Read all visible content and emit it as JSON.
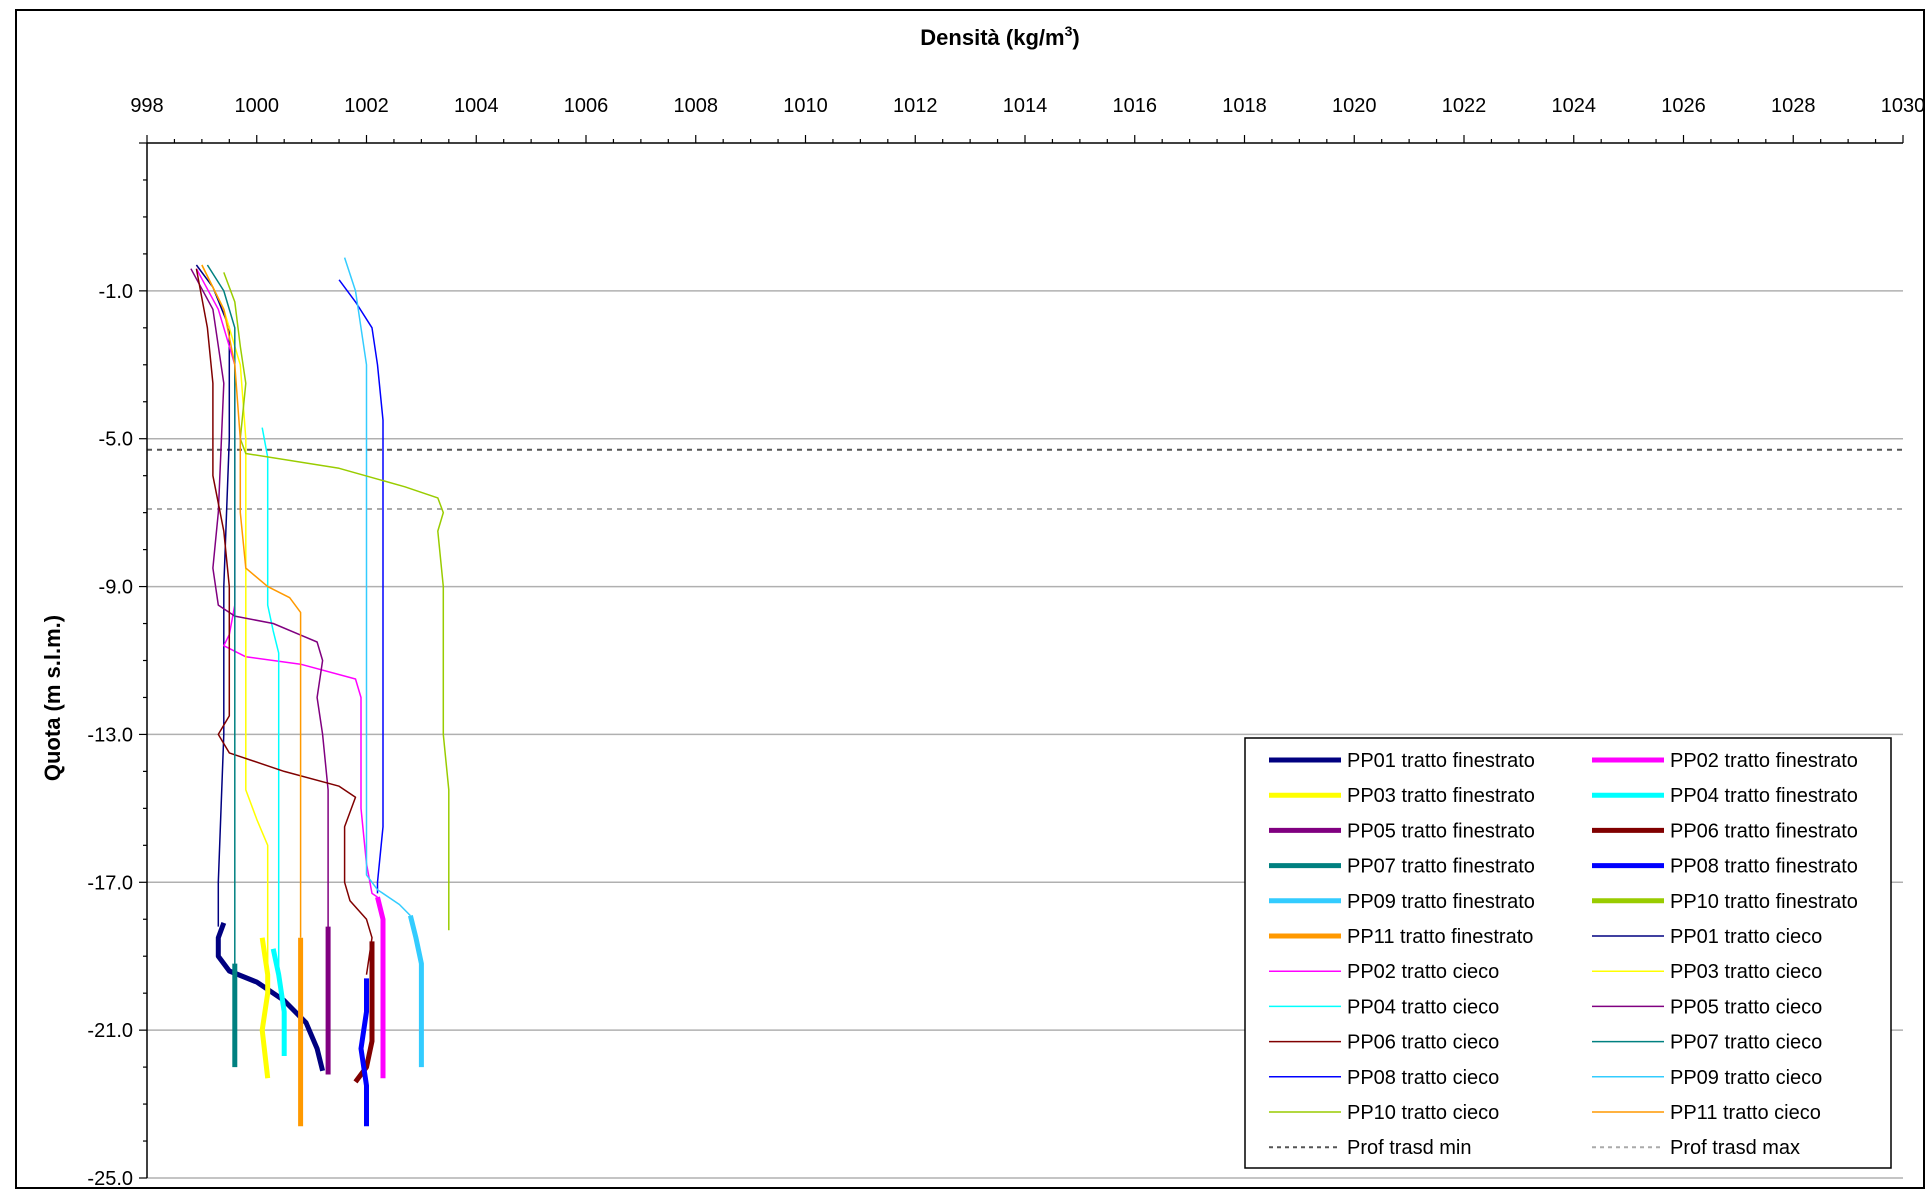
{
  "chart_data": {
    "type": "line",
    "title": "",
    "xlabel": "Densità (kg/m3)",
    "xlabel_main": "Densità (kg/m",
    "xlabel_sup": "3",
    "xlabel_end": ")",
    "ylabel": "Quota (m s.l.m.)",
    "xlim": [
      998,
      1030
    ],
    "ylim": [
      -25.0,
      3.0
    ],
    "x_ticks": [
      "998",
      "1000",
      "1002",
      "1004",
      "1006",
      "1008",
      "1010",
      "1012",
      "1014",
      "1016",
      "1018",
      "1020",
      "1022",
      "1024",
      "1026",
      "1028",
      "1030"
    ],
    "y_ticks": [
      "-1.0",
      "-5.0",
      "-9.0",
      "-13.0",
      "-17.0",
      "-21.0",
      "-25.0"
    ],
    "x_axis_position": "top",
    "grid": "horizontal",
    "legend_position": "bottom-right",
    "reference_lines": [
      {
        "name": "Prof trasd min",
        "y": -5.3,
        "color": "#555555",
        "dash": "5,5"
      },
      {
        "name": "Prof trasd max",
        "y": -6.9,
        "color": "#aaaaaa",
        "dash": "5,5"
      }
    ],
    "series": [
      {
        "name": "PP01 tratto cieco",
        "color": "#000080",
        "width": 1.5,
        "points": [
          [
            998.9,
            -0.3
          ],
          [
            999.2,
            -0.9
          ],
          [
            999.5,
            -2.0
          ],
          [
            999.5,
            -5.0
          ],
          [
            999.4,
            -9.0
          ],
          [
            999.4,
            -13.0
          ],
          [
            999.3,
            -17.0
          ],
          [
            999.3,
            -18.2
          ]
        ]
      },
      {
        "name": "PP02 tratto cieco",
        "color": "#ff00ff",
        "width": 1.5,
        "points": [
          [
            998.9,
            -0.4
          ],
          [
            999.3,
            -1.5
          ],
          [
            999.6,
            -3.0
          ],
          [
            999.6,
            -6.0
          ],
          [
            999.6,
            -9.5
          ],
          [
            999.5,
            -10.3
          ],
          [
            999.4,
            -10.6
          ],
          [
            999.8,
            -10.9
          ],
          [
            1000.8,
            -11.1
          ],
          [
            1001.8,
            -11.5
          ],
          [
            1001.9,
            -12.0
          ],
          [
            1001.9,
            -13.0
          ],
          [
            1001.9,
            -15.0
          ],
          [
            1002.0,
            -16.5
          ],
          [
            1002.1,
            -17.3
          ],
          [
            1002.2,
            -17.4
          ]
        ]
      },
      {
        "name": "PP03 tratto cieco",
        "color": "#ffff00",
        "width": 1.5,
        "points": [
          [
            999.0,
            -0.3
          ],
          [
            999.4,
            -1.5
          ],
          [
            999.7,
            -3.0
          ],
          [
            999.8,
            -5.0
          ],
          [
            999.8,
            -9.0
          ],
          [
            999.8,
            -13.0
          ],
          [
            999.8,
            -14.5
          ],
          [
            1000.0,
            -15.3
          ],
          [
            1000.2,
            -16.0
          ],
          [
            1000.2,
            -17.0
          ],
          [
            1000.2,
            -18.5
          ],
          [
            1000.2,
            -19.5
          ]
        ]
      },
      {
        "name": "PP04 tratto cieco",
        "color": "#00ffff",
        "width": 1.5,
        "points": [
          [
            1000.1,
            -4.7
          ],
          [
            1000.2,
            -5.5
          ],
          [
            1000.2,
            -7.0
          ],
          [
            1000.2,
            -9.5
          ],
          [
            1000.3,
            -10.2
          ],
          [
            1000.4,
            -10.8
          ],
          [
            1000.4,
            -13.0
          ],
          [
            1000.4,
            -17.0
          ],
          [
            1000.4,
            -19.0
          ],
          [
            1000.4,
            -19.7
          ]
        ]
      },
      {
        "name": "PP05 tratto cieco",
        "color": "#800080",
        "width": 1.5,
        "points": [
          [
            998.8,
            -0.4
          ],
          [
            999.2,
            -1.5
          ],
          [
            999.4,
            -3.5
          ],
          [
            999.3,
            -7.0
          ],
          [
            999.2,
            -8.5
          ],
          [
            999.3,
            -9.5
          ],
          [
            999.6,
            -9.8
          ],
          [
            1000.3,
            -10.0
          ],
          [
            1001.1,
            -10.5
          ],
          [
            1001.2,
            -11.0
          ],
          [
            1001.1,
            -12.0
          ],
          [
            1001.2,
            -13.0
          ],
          [
            1001.3,
            -14.5
          ],
          [
            1001.3,
            -16.0
          ],
          [
            1001.3,
            -17.5
          ],
          [
            1001.3,
            -19.0
          ]
        ]
      },
      {
        "name": "PP06 tratto cieco",
        "color": "#800000",
        "width": 1.5,
        "points": [
          [
            998.9,
            -0.4
          ],
          [
            999.1,
            -2.0
          ],
          [
            999.2,
            -3.5
          ],
          [
            999.2,
            -6.0
          ],
          [
            999.4,
            -7.5
          ],
          [
            999.5,
            -9.0
          ],
          [
            999.5,
            -11.0
          ],
          [
            999.5,
            -12.5
          ],
          [
            999.3,
            -13.0
          ],
          [
            999.5,
            -13.5
          ],
          [
            1000.5,
            -14.0
          ],
          [
            1001.5,
            -14.4
          ],
          [
            1001.8,
            -14.7
          ],
          [
            1001.6,
            -15.5
          ],
          [
            1001.6,
            -17.0
          ],
          [
            1001.7,
            -17.5
          ],
          [
            1002.0,
            -18.0
          ],
          [
            1002.1,
            -18.5
          ],
          [
            1002.0,
            -19.5
          ]
        ]
      },
      {
        "name": "PP07 tratto cieco",
        "color": "#008080",
        "width": 1.5,
        "points": [
          [
            999.1,
            -0.3
          ],
          [
            999.4,
            -1.0
          ],
          [
            999.6,
            -2.0
          ],
          [
            999.6,
            -5.0
          ],
          [
            999.6,
            -9.0
          ],
          [
            999.6,
            -13.0
          ],
          [
            999.6,
            -17.0
          ],
          [
            999.6,
            -19.0
          ],
          [
            999.6,
            -20.0
          ]
        ]
      },
      {
        "name": "PP08 tratto cieco",
        "color": "#0000ff",
        "width": 1.5,
        "points": [
          [
            1001.5,
            -0.7
          ],
          [
            1001.8,
            -1.3
          ],
          [
            1002.1,
            -2.0
          ],
          [
            1002.2,
            -3.0
          ],
          [
            1002.3,
            -4.5
          ],
          [
            1002.3,
            -7.0
          ],
          [
            1002.3,
            -9.5
          ],
          [
            1002.3,
            -12.0
          ],
          [
            1002.3,
            -14.5
          ],
          [
            1002.3,
            -15.5
          ],
          [
            1002.2,
            -17.0
          ],
          [
            1002.2,
            -17.3
          ]
        ]
      },
      {
        "name": "PP09 tratto cieco",
        "color": "#33ccff",
        "width": 1.5,
        "points": [
          [
            1001.6,
            -0.1
          ],
          [
            1001.8,
            -1.0
          ],
          [
            1001.9,
            -2.0
          ],
          [
            1002.0,
            -3.0
          ],
          [
            1002.0,
            -5.0
          ],
          [
            1002.0,
            -9.0
          ],
          [
            1002.0,
            -13.0
          ],
          [
            1002.0,
            -15.5
          ],
          [
            1002.0,
            -16.8
          ],
          [
            1002.2,
            -17.2
          ],
          [
            1002.6,
            -17.6
          ],
          [
            1002.8,
            -17.9
          ]
        ]
      },
      {
        "name": "PP10 tratto cieco",
        "color": "#99cc00",
        "width": 1.5,
        "points": [
          [
            999.4,
            -0.5
          ],
          [
            999.6,
            -1.3
          ],
          [
            999.7,
            -2.5
          ],
          [
            999.8,
            -3.5
          ],
          [
            999.7,
            -5.0
          ],
          [
            999.8,
            -5.4
          ],
          [
            1001.5,
            -5.8
          ],
          [
            1002.7,
            -6.3
          ],
          [
            1003.3,
            -6.6
          ],
          [
            1003.4,
            -7.0
          ],
          [
            1003.3,
            -7.5
          ],
          [
            1003.4,
            -9.0
          ],
          [
            1003.4,
            -11.0
          ],
          [
            1003.4,
            -13.0
          ],
          [
            1003.5,
            -14.5
          ],
          [
            1003.5,
            -16.0
          ],
          [
            1003.5,
            -18.3
          ]
        ]
      },
      {
        "name": "PP11 tratto cieco",
        "color": "#ff9900",
        "width": 1.5,
        "points": [
          [
            999.0,
            -0.3
          ],
          [
            999.4,
            -1.5
          ],
          [
            999.6,
            -3.0
          ],
          [
            999.7,
            -5.0
          ],
          [
            999.7,
            -7.0
          ],
          [
            999.8,
            -8.5
          ],
          [
            1000.2,
            -9.0
          ],
          [
            1000.6,
            -9.3
          ],
          [
            1000.8,
            -9.7
          ],
          [
            1000.8,
            -11.0
          ],
          [
            1000.8,
            -13.0
          ],
          [
            1000.8,
            -15.0
          ],
          [
            1000.8,
            -17.0
          ],
          [
            1000.8,
            -18.5
          ]
        ]
      },
      {
        "name": "PP01 tratto finestrato",
        "color": "#000080",
        "width": 5,
        "points": [
          [
            999.4,
            -18.1
          ],
          [
            999.3,
            -18.5
          ],
          [
            999.3,
            -19.0
          ],
          [
            999.5,
            -19.4
          ],
          [
            1000.0,
            -19.7
          ],
          [
            1000.5,
            -20.2
          ],
          [
            1000.9,
            -20.8
          ],
          [
            1001.1,
            -21.5
          ],
          [
            1001.2,
            -22.1
          ]
        ]
      },
      {
        "name": "PP02 tratto finestrato",
        "color": "#ff00ff",
        "width": 5,
        "points": [
          [
            1002.2,
            -17.4
          ],
          [
            1002.3,
            -18.0
          ],
          [
            1002.3,
            -19.0
          ],
          [
            1002.3,
            -20.5
          ],
          [
            1002.3,
            -22.3
          ]
        ]
      },
      {
        "name": "PP03 tratto finestrato",
        "color": "#ffff00",
        "width": 5,
        "points": [
          [
            1000.1,
            -18.5
          ],
          [
            1000.2,
            -19.5
          ],
          [
            1000.2,
            -20.0
          ],
          [
            1000.1,
            -21.0
          ],
          [
            1000.2,
            -22.3
          ]
        ]
      },
      {
        "name": "PP04 tratto finestrato",
        "color": "#00ffff",
        "width": 5,
        "points": [
          [
            1000.3,
            -18.8
          ],
          [
            1000.4,
            -19.5
          ],
          [
            1000.5,
            -20.5
          ],
          [
            1000.5,
            -21.7
          ]
        ]
      },
      {
        "name": "PP05 tratto finestrato",
        "color": "#800080",
        "width": 5,
        "points": [
          [
            1001.3,
            -18.2
          ],
          [
            1001.3,
            -19.5
          ],
          [
            1001.3,
            -21.0
          ],
          [
            1001.3,
            -22.2
          ]
        ]
      },
      {
        "name": "PP06 tratto finestrato",
        "color": "#800000",
        "width": 5,
        "points": [
          [
            1002.1,
            -18.6
          ],
          [
            1002.1,
            -19.5
          ],
          [
            1002.1,
            -20.5
          ],
          [
            1002.1,
            -21.3
          ],
          [
            1002.0,
            -22.0
          ],
          [
            1001.8,
            -22.4
          ]
        ]
      },
      {
        "name": "PP07 tratto finestrato",
        "color": "#008080",
        "width": 5,
        "points": [
          [
            999.6,
            -19.2
          ],
          [
            999.6,
            -20.5
          ],
          [
            999.6,
            -22.0
          ]
        ]
      },
      {
        "name": "PP08 tratto finestrato",
        "color": "#0000ff",
        "width": 5,
        "points": [
          [
            1002.0,
            -19.6
          ],
          [
            1002.0,
            -20.5
          ],
          [
            1001.9,
            -21.5
          ],
          [
            1002.0,
            -22.5
          ],
          [
            1002.0,
            -23.6
          ]
        ]
      },
      {
        "name": "PP09 tratto finestrato",
        "color": "#33ccff",
        "width": 5,
        "points": [
          [
            1002.8,
            -17.9
          ],
          [
            1002.9,
            -18.5
          ],
          [
            1003.0,
            -19.2
          ],
          [
            1003.0,
            -20.5
          ],
          [
            1003.0,
            -22.0
          ]
        ]
      },
      {
        "name": "PP10 tratto finestrato",
        "color": "#99cc00",
        "width": 5,
        "points": []
      },
      {
        "name": "PP11 tratto finestrato",
        "color": "#ff9900",
        "width": 5,
        "points": [
          [
            1000.8,
            -18.5
          ],
          [
            1000.8,
            -20.0
          ],
          [
            1000.8,
            -22.0
          ],
          [
            1000.8,
            -23.6
          ]
        ]
      }
    ],
    "legend": [
      {
        "label": "PP01 tratto finestrato",
        "color": "#000080",
        "style": "thick"
      },
      {
        "label": "PP02 tratto finestrato",
        "color": "#ff00ff",
        "style": "thick"
      },
      {
        "label": "PP03 tratto finestrato",
        "color": "#ffff00",
        "style": "thick"
      },
      {
        "label": "PP04 tratto finestrato",
        "color": "#00ffff",
        "style": "thick"
      },
      {
        "label": "PP05 tratto finestrato",
        "color": "#800080",
        "style": "thick"
      },
      {
        "label": "PP06 tratto finestrato",
        "color": "#800000",
        "style": "thick"
      },
      {
        "label": "PP07 tratto finestrato",
        "color": "#008080",
        "style": "thick"
      },
      {
        "label": "PP08 tratto finestrato",
        "color": "#0000ff",
        "style": "thick"
      },
      {
        "label": "PP09 tratto finestrato",
        "color": "#33ccff",
        "style": "thick"
      },
      {
        "label": "PP10 tratto finestrato",
        "color": "#99cc00",
        "style": "thick"
      },
      {
        "label": "PP11 tratto finestrato",
        "color": "#ff9900",
        "style": "thick"
      },
      {
        "label": "PP01 tratto cieco",
        "color": "#000080",
        "style": "thin"
      },
      {
        "label": "PP02 tratto cieco",
        "color": "#ff00ff",
        "style": "thin"
      },
      {
        "label": "PP03 tratto cieco",
        "color": "#ffff00",
        "style": "thin"
      },
      {
        "label": "PP04 tratto cieco",
        "color": "#00ffff",
        "style": "thin"
      },
      {
        "label": "PP05 tratto cieco",
        "color": "#800080",
        "style": "thin"
      },
      {
        "label": "PP06 tratto cieco",
        "color": "#800000",
        "style": "thin"
      },
      {
        "label": "PP07 tratto cieco",
        "color": "#008080",
        "style": "thin"
      },
      {
        "label": "PP08 tratto cieco",
        "color": "#0000ff",
        "style": "thin"
      },
      {
        "label": "PP09 tratto cieco",
        "color": "#33ccff",
        "style": "thin"
      },
      {
        "label": "PP10 tratto cieco",
        "color": "#99cc00",
        "style": "thin"
      },
      {
        "label": "PP11 tratto cieco",
        "color": "#ff9900",
        "style": "thin"
      },
      {
        "label": "Prof trasd min",
        "color": "#555555",
        "style": "dotted"
      },
      {
        "label": "Prof trasd max",
        "color": "#aaaaaa",
        "style": "dotted"
      }
    ]
  }
}
